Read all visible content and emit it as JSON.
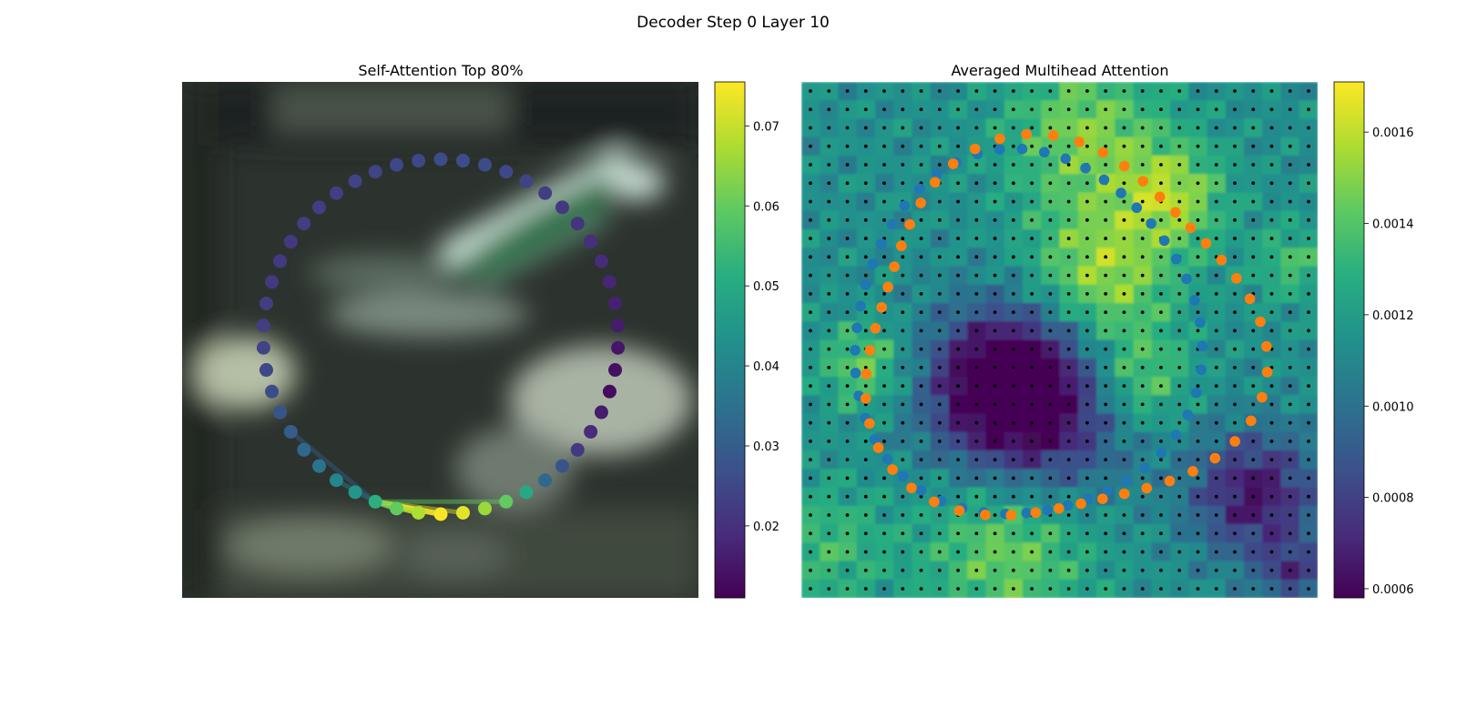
{
  "figure": {
    "suptitle": "Decoder Step 0 Layer 10"
  },
  "chart_data": [
    {
      "type": "scatter",
      "title": "Self-Attention Top 80%",
      "xlabel": "",
      "ylabel": "",
      "grid": false,
      "axes_visible": false,
      "background": "blurred photo (dark greenish street scene)",
      "points_count": 50,
      "point_colormap": "viridis",
      "attention_values": [
        0.075,
        0.068,
        0.06,
        0.052,
        0.045,
        0.04,
        0.036,
        0.033,
        0.03,
        0.028,
        0.026,
        0.025,
        0.024,
        0.023,
        0.023,
        0.022,
        0.022,
        0.022,
        0.023,
        0.023,
        0.023,
        0.024,
        0.024,
        0.025,
        0.025,
        0.026,
        0.026,
        0.026,
        0.025,
        0.024,
        0.023,
        0.022,
        0.021,
        0.02,
        0.019,
        0.018,
        0.017,
        0.016,
        0.015,
        0.014,
        0.013,
        0.016,
        0.019,
        0.022,
        0.028,
        0.033,
        0.05,
        0.06,
        0.066,
        0.073
      ],
      "highlight_lines_to": [
        0,
        1,
        2,
        3,
        49,
        47,
        5,
        8
      ],
      "colorbar": {
        "colormap": "viridis",
        "vmin": 0.011,
        "vmax": 0.0755,
        "ticks": [
          "0.02",
          "0.03",
          "0.04",
          "0.05",
          "0.06",
          "0.07"
        ],
        "tick_values": [
          0.02,
          0.03,
          0.04,
          0.05,
          0.06,
          0.07
        ]
      }
    },
    {
      "type": "heatmap",
      "title": "Averaged Multihead Attention",
      "xlabel": "",
      "ylabel": "",
      "grid_cells": 28,
      "grid_points": 28,
      "grid_point_color": "#000000",
      "series": [
        {
          "color": "#1f77b4",
          "count": 50
        },
        {
          "color": "#ff7f0e",
          "count": 50
        }
      ],
      "colorbar": {
        "colormap": "viridis",
        "vmin": 0.00058,
        "vmax": 0.00171,
        "ticks": [
          "0.0006",
          "0.0008",
          "0.0010",
          "0.0012",
          "0.0014",
          "0.0016"
        ],
        "tick_values": [
          0.0006,
          0.0008,
          0.001,
          0.0012,
          0.0014,
          0.0016
        ]
      }
    }
  ]
}
